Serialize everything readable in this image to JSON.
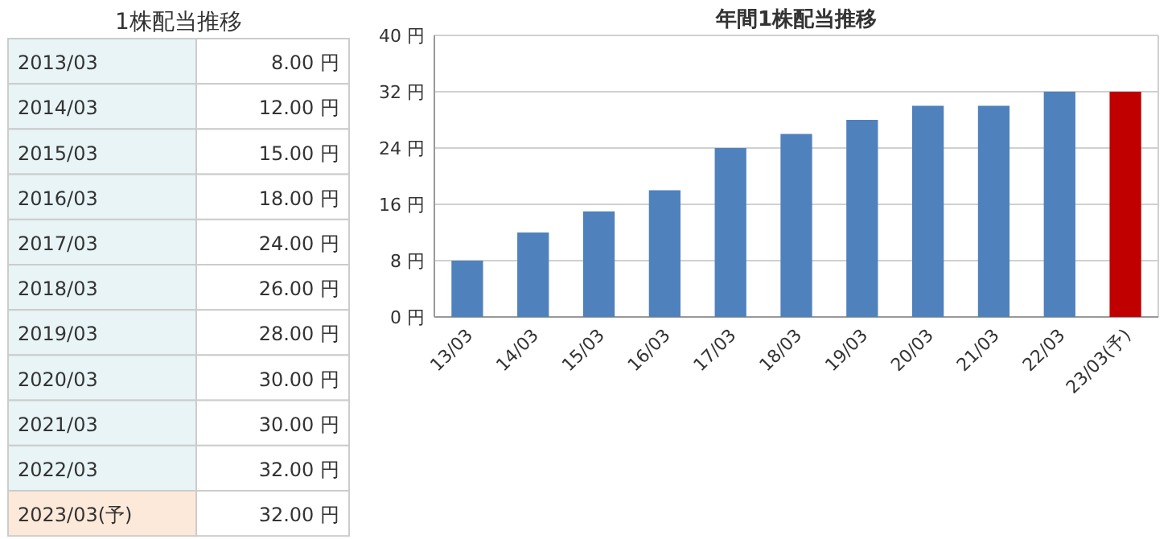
{
  "chart_data": [
    {
      "type": "other",
      "title": "1株配当推移",
      "annotations": [
        "2013/03",
        "8.00 円",
        "2014/03",
        "12.00 円",
        "2015/03",
        "15.00 円",
        "2016/03",
        "18.00 円",
        "2017/03",
        "24.00 円",
        "2018/03",
        "26.00 円",
        "2019/03",
        "28.00 円",
        "2020/03",
        "30.00 円",
        "2021/03",
        "30.00 円",
        "2022/03",
        "32.00 円",
        "2023/03(予)",
        "32.00 円"
      ],
      "colors": [
        "#e8f4f6",
        "#e8f4f6",
        "#e8f4f6",
        "#e8f4f6",
        "#e8f4f6",
        "#e8f4f6",
        "#e8f4f6",
        "#e8f4f6",
        "#e8f4f6",
        "#e8f4f6",
        "#fde9d9"
      ]
    },
    {
      "type": "bar",
      "title": "年間1株配当推移",
      "categories": [
        "13/03",
        "14/03",
        "15/03",
        "16/03",
        "17/03",
        "18/03",
        "19/03",
        "20/03",
        "21/03",
        "22/03",
        "23/03(予)"
      ],
      "values": [
        8,
        12,
        15,
        18,
        24,
        26,
        28,
        30,
        30,
        32,
        32
      ],
      "colors": [
        "#4f81bd",
        "#4f81bd",
        "#4f81bd",
        "#4f81bd",
        "#4f81bd",
        "#4f81bd",
        "#4f81bd",
        "#4f81bd",
        "#4f81bd",
        "#4f81bd",
        "#c00000"
      ],
      "ylim": [
        0,
        40
      ],
      "yticks": [
        {
          "value": 0,
          "label": "0 円"
        },
        {
          "value": 8,
          "label": "8 円"
        },
        {
          "value": 16,
          "label": "16 円"
        },
        {
          "value": 24,
          "label": "24 円"
        },
        {
          "value": 32,
          "label": "32 円"
        },
        {
          "value": 40,
          "label": "40 円"
        }
      ],
      "grid": "y"
    }
  ]
}
